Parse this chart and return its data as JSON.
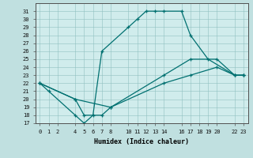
{
  "xlabel": "Humidex (Indice chaleur)",
  "bg_color": "#c0e0e0",
  "plot_bg_color": "#d0ecec",
  "line_color": "#007070",
  "ylim": [
    17,
    32
  ],
  "xlim": [
    -0.5,
    23.5
  ],
  "yticks": [
    17,
    18,
    19,
    20,
    21,
    22,
    23,
    24,
    25,
    26,
    27,
    28,
    29,
    30,
    31
  ],
  "xticks": [
    0,
    1,
    2,
    4,
    5,
    6,
    7,
    8,
    10,
    11,
    12,
    13,
    14,
    16,
    17,
    18,
    19,
    20,
    22,
    23
  ],
  "xtick_labels": [
    "0",
    "1",
    "2",
    "4",
    "5",
    "6",
    "7",
    "8",
    "10",
    "11",
    "12",
    "13",
    "14",
    "16",
    "17",
    "18",
    "19",
    "20",
    "22",
    "23"
  ],
  "line1_x": [
    0,
    1,
    4,
    5,
    6,
    7,
    10,
    11,
    12,
    13,
    14,
    16,
    17,
    19,
    22,
    23
  ],
  "line1_y": [
    22,
    21,
    18,
    17,
    18,
    26,
    29,
    30,
    31,
    31,
    31,
    31,
    28,
    25,
    23,
    23
  ],
  "line2_x": [
    0,
    4,
    5,
    7,
    8,
    14,
    17,
    20,
    22,
    23
  ],
  "line2_y": [
    22,
    20,
    18,
    18,
    19,
    23,
    25,
    25,
    23,
    23
  ],
  "line3_x": [
    0,
    4,
    8,
    14,
    17,
    20,
    22,
    23
  ],
  "line3_y": [
    22,
    20,
    19,
    22,
    23,
    24,
    23,
    23
  ]
}
